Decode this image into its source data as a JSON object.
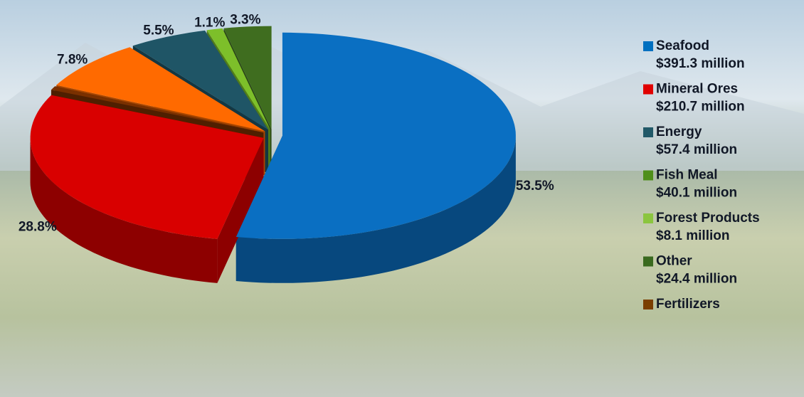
{
  "chart_data": {
    "type": "pie",
    "slices": {
      "values": [
        53.5,
        28.8,
        0.6,
        7.8,
        5.5,
        1.1,
        3.3
      ],
      "value_labels": [
        "53.5%",
        "28.8%",
        null,
        "7.8%",
        "5.5%",
        "1.1%",
        "3.3%"
      ],
      "colors": [
        "#0a6fc2",
        "#d90000",
        "#7a3000",
        "#ff6a00",
        "#1f5566",
        "#7dbf2a",
        "#3f6d1f"
      ]
    },
    "legend": [
      {
        "name": "Seafood",
        "label": "$391.3 million",
        "color": "#0070c0"
      },
      {
        "name": "Mineral Ores",
        "label": "$210.7 million",
        "color": "#e00000"
      },
      {
        "name": "Energy",
        "label": "$57.4 million",
        "color": "#215968"
      },
      {
        "name": "Fish Meal",
        "label": "$40.1 million",
        "color": "#4f8f1a"
      },
      {
        "name": "Forest Products",
        "label": "$8.1 million",
        "color": "#8bc53f"
      },
      {
        "name": "Other",
        "label": "$24.4 million",
        "color": "#3a6a1f"
      },
      {
        "name": "Fertilizers",
        "color": "#7b3f00"
      }
    ]
  }
}
